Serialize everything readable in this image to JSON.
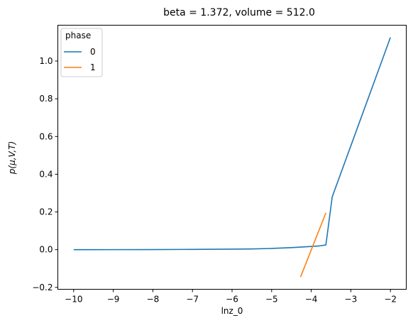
{
  "chart_data": {
    "type": "line",
    "title": "beta = 1.372, volume = 512.0",
    "xlabel": "lnz_0",
    "ylabel": "p(μ,V,T)",
    "xlim": [
      -10.4,
      -1.6
    ],
    "ylim": [
      -0.21,
      1.19
    ],
    "xticks": [
      -10,
      -9,
      -8,
      -7,
      -6,
      -5,
      -4,
      -3,
      -2
    ],
    "yticks": [
      -0.2,
      0.0,
      0.2,
      0.4,
      0.6,
      0.8,
      1.0
    ],
    "grid": false,
    "legend": {
      "title": "phase",
      "placement": "top-left"
    },
    "series": [
      {
        "name": "0",
        "color": "#1f77b4",
        "points": [
          [
            -10.0,
            0.0
          ],
          [
            -9.0,
            0.0003
          ],
          [
            -8.0,
            0.0006
          ],
          [
            -7.0,
            0.0015
          ],
          [
            -6.0,
            0.0028
          ],
          [
            -5.5,
            0.004
          ],
          [
            -5.0,
            0.0065
          ],
          [
            -4.5,
            0.011
          ],
          [
            -4.0,
            0.017
          ],
          [
            -3.8,
            0.02
          ],
          [
            -3.63,
            0.025
          ],
          [
            -3.47,
            0.28
          ],
          [
            -2.0,
            1.125
          ]
        ]
      },
      {
        "name": "1",
        "color": "#ff7f0e",
        "points": [
          [
            -4.27,
            -0.145
          ],
          [
            -3.63,
            0.195
          ]
        ]
      }
    ]
  }
}
